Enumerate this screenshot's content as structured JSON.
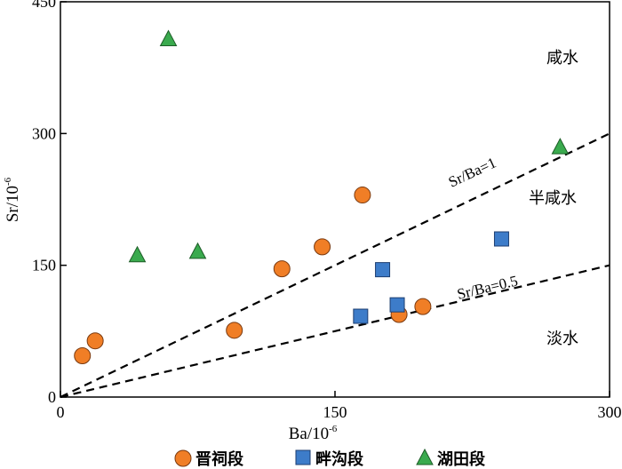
{
  "chart_data": {
    "type": "scatter",
    "xlabel": "Ba/10",
    "xlabel_sup": "-6",
    "ylabel": "Sr/10",
    "ylabel_sup": "-6",
    "xlim": [
      0,
      300
    ],
    "ylim": [
      0,
      450
    ],
    "xticks": [
      "0",
      "150",
      "300"
    ],
    "yticks": [
      "0",
      "150",
      "300",
      "450"
    ],
    "grid": false,
    "legend_position": "bottom",
    "zones": [
      {
        "id": "saline",
        "label": "咸水"
      },
      {
        "id": "brackish",
        "label": "半咸水"
      },
      {
        "id": "fresh",
        "label": "淡水"
      }
    ],
    "reference_lines": [
      {
        "label": "Sr/Ba=1",
        "slope": 1
      },
      {
        "label": "Sr/Ba=0.5",
        "slope": 0.5
      }
    ],
    "series": [
      {
        "name": "晋祠段",
        "marker": "circle",
        "color": "#f07e26",
        "points": [
          {
            "x": 12,
            "y": 47
          },
          {
            "x": 19,
            "y": 64
          },
          {
            "x": 95,
            "y": 76
          },
          {
            "x": 121,
            "y": 146
          },
          {
            "x": 143,
            "y": 171
          },
          {
            "x": 165,
            "y": 230
          },
          {
            "x": 185,
            "y": 94
          },
          {
            "x": 198,
            "y": 103
          }
        ]
      },
      {
        "name": "畔沟段",
        "marker": "square",
        "color": "#3d7cc9",
        "points": [
          {
            "x": 164,
            "y": 92
          },
          {
            "x": 176,
            "y": 145
          },
          {
            "x": 184,
            "y": 105
          },
          {
            "x": 241,
            "y": 180
          }
        ]
      },
      {
        "name": "湖田段",
        "marker": "triangle",
        "color": "#3aaa4e",
        "points": [
          {
            "x": 59,
            "y": 408
          },
          {
            "x": 42,
            "y": 162
          },
          {
            "x": 75,
            "y": 166
          },
          {
            "x": 273,
            "y": 285
          }
        ]
      }
    ]
  }
}
